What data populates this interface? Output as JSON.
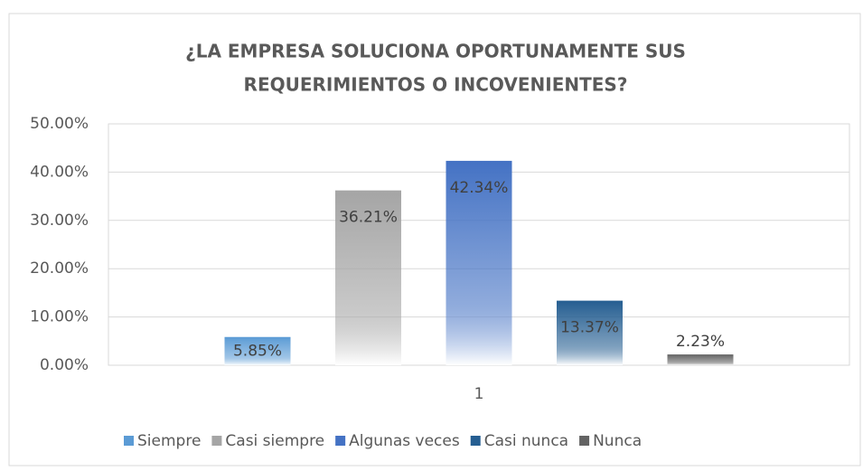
{
  "chart_data": {
    "type": "bar",
    "title": "¿LA EMPRESA SOLUCIONA OPORTUNAMENTE SUS REQUERIMIENTOS O INCOVENIENTES?",
    "categories": [
      "1"
    ],
    "series": [
      {
        "name": "Siempre",
        "color": "#5b9bd5",
        "values": [
          5.85
        ],
        "value_labels": [
          "5.85%"
        ]
      },
      {
        "name": "Casi siempre",
        "color": "#a5a5a5",
        "values": [
          36.21
        ],
        "value_labels": [
          "36.21%"
        ]
      },
      {
        "name": "Algunas veces",
        "color": "#4472c4",
        "values": [
          42.34
        ],
        "value_labels": [
          "42.34%"
        ]
      },
      {
        "name": "Casi nunca",
        "color": "#255e91",
        "values": [
          13.37
        ],
        "value_labels": [
          "13.37%"
        ]
      },
      {
        "name": "Nunca",
        "color": "#636363",
        "values": [
          2.23
        ],
        "value_labels": [
          "2.23%"
        ]
      }
    ],
    "ylim": [
      0,
      50
    ],
    "yticks": [
      {
        "value": 0,
        "label": "0.00%"
      },
      {
        "value": 10,
        "label": "10.00%"
      },
      {
        "value": 20,
        "label": "20.00%"
      },
      {
        "value": 30,
        "label": "30.00%"
      },
      {
        "value": 40,
        "label": "40.00%"
      },
      {
        "value": 50,
        "label": "50.00%"
      }
    ],
    "grid": true,
    "legend": "bottom"
  }
}
